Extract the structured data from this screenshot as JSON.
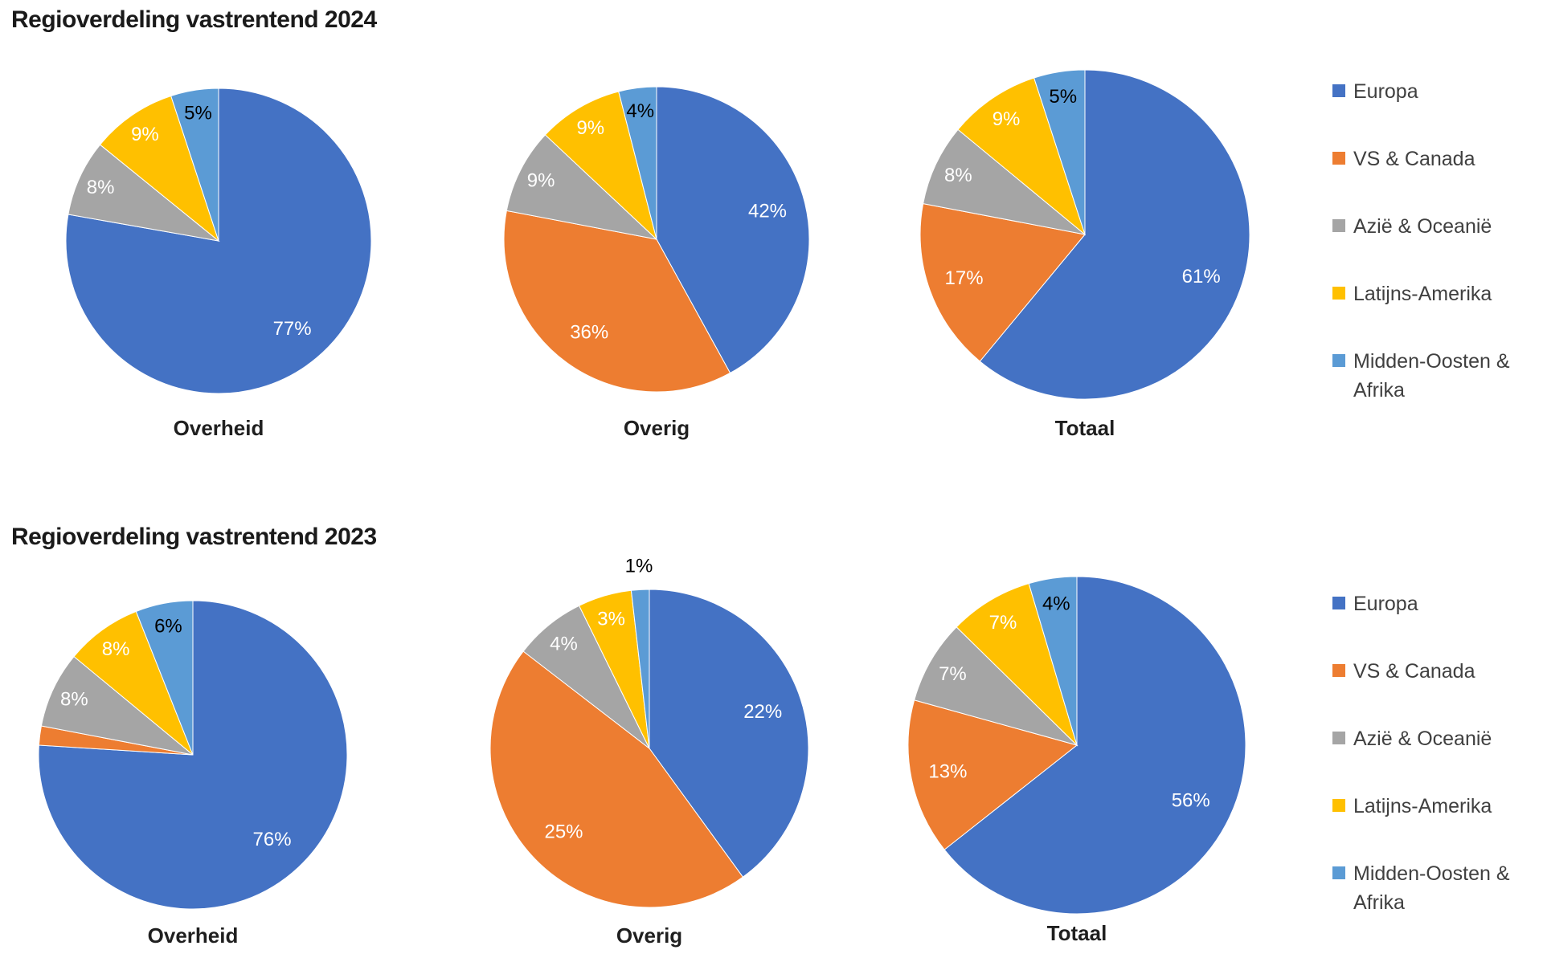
{
  "page": {
    "background": "#FFFFFF"
  },
  "chart_data": [
    {
      "type": "pie",
      "title": "Regioverdeling vastrentend 2024",
      "legend_position": "right",
      "legend": [
        "Europa",
        "VS & Canada",
        "Azië & Oceanië",
        "Latijns-Amerika",
        "Midden-Oosten & Afrika"
      ],
      "colors": [
        "#4472C4",
        "#ED7D31",
        "#A5A5A5",
        "#FFC000",
        "#5B9BD5"
      ],
      "dark_label_series": [
        4
      ],
      "label_text_colors": {
        "default": "#FFFFFF",
        "on_light_slice": "#000000"
      },
      "pies": [
        {
          "name": "Overheid",
          "values": [
            77,
            0,
            8,
            9,
            5
          ],
          "labels": [
            "77%",
            null,
            "8%",
            "9%",
            "5%"
          ]
        },
        {
          "name": "Overig",
          "values": [
            42,
            36,
            9,
            9,
            4
          ],
          "labels": [
            "42%",
            "36%",
            "9%",
            "9%",
            "4%"
          ]
        },
        {
          "name": "Totaal",
          "values": [
            61,
            17,
            8,
            9,
            5
          ],
          "labels": [
            "61%",
            "17%",
            "8%",
            "9%",
            "5%"
          ]
        }
      ]
    },
    {
      "type": "pie",
      "title": "Regioverdeling vastrentend 2023",
      "legend_position": "right",
      "legend": [
        "Europa",
        "VS & Canada",
        "Azië & Oceanië",
        "Latijns-Amerika",
        "Midden-Oosten & Afrika"
      ],
      "colors": [
        "#4472C4",
        "#ED7D31",
        "#A5A5A5",
        "#FFC000",
        "#5B9BD5"
      ],
      "dark_label_series": [
        4
      ],
      "label_text_colors": {
        "default": "#FFFFFF",
        "on_light_slice": "#000000"
      },
      "pies": [
        {
          "name": "Overheid",
          "values": [
            76,
            2,
            8,
            8,
            6
          ],
          "labels": [
            "76%",
            null,
            "8%",
            "8%",
            "6%"
          ]
        },
        {
          "name": "Overig",
          "values": [
            22,
            25,
            4,
            3,
            1
          ],
          "labels": [
            "22%",
            "25%",
            "4%",
            "3%",
            "1%"
          ],
          "outside_labels": [
            4
          ]
        },
        {
          "name": "Totaal",
          "values": [
            56,
            13,
            7,
            7,
            4
          ],
          "labels": [
            "56%",
            "13%",
            "7%",
            "7%",
            "4%"
          ]
        }
      ]
    }
  ]
}
